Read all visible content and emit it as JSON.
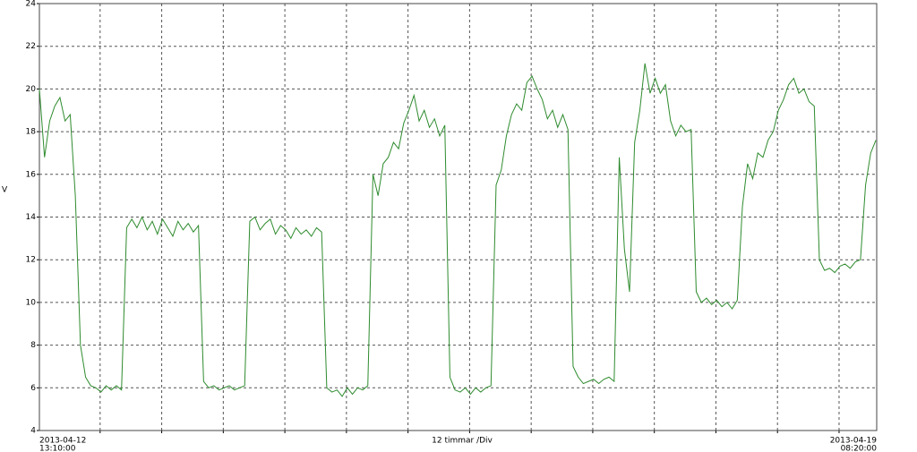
{
  "chart_data": {
    "type": "line",
    "ylabel": "V",
    "x_center_label": "12 timmar /Div",
    "x_start_label": {
      "date": "2013-04-12",
      "time": "13:10:00"
    },
    "x_end_label": {
      "date": "2013-04-19",
      "time": "08:20:00"
    },
    "xlim": [
      0,
      163.1667
    ],
    "xgrid": [
      11.8333,
      23.8333,
      35.8333,
      47.8333,
      59.8333,
      71.8333,
      83.8333,
      95.8333,
      107.8333,
      119.8333,
      131.8333,
      143.8333,
      155.8333
    ],
    "ylim": [
      4,
      24
    ],
    "yticks": [
      4,
      6,
      8,
      10,
      12,
      14,
      16,
      18,
      20,
      22,
      24
    ],
    "grid": true,
    "color": "#2e8b2e",
    "x": [
      0,
      1,
      2,
      3,
      4,
      5,
      6,
      7,
      8,
      9,
      10,
      11,
      12,
      13,
      14,
      15,
      16,
      17,
      18,
      19,
      20,
      21,
      22,
      23,
      24,
      25,
      26,
      27,
      28,
      29,
      30,
      31,
      32,
      33,
      34,
      35,
      36,
      37,
      38,
      39,
      40,
      41,
      42,
      43,
      44,
      45,
      46,
      47,
      48,
      49,
      50,
      51,
      52,
      53,
      54,
      55,
      56,
      57,
      58,
      59,
      60,
      61,
      62,
      63,
      64,
      65,
      66,
      67,
      68,
      69,
      70,
      71,
      72,
      73,
      74,
      75,
      76,
      77,
      78,
      79,
      80,
      81,
      82,
      83,
      84,
      85,
      86,
      87,
      88,
      89,
      90,
      91,
      92,
      93,
      94,
      95,
      96,
      97,
      98,
      99,
      100,
      101,
      102,
      103,
      104,
      105,
      106,
      107,
      108,
      109,
      110,
      111,
      112,
      113,
      114,
      115,
      116,
      117,
      118,
      119,
      120,
      121,
      122,
      123,
      124,
      125,
      126,
      127,
      128,
      129,
      130,
      131,
      132,
      133,
      134,
      135,
      136,
      137,
      138,
      139,
      140,
      141,
      142,
      143,
      144,
      145,
      146,
      147,
      148,
      149,
      150,
      151,
      152,
      153,
      154,
      155,
      156,
      157,
      158,
      159,
      160,
      161,
      162,
      163
    ],
    "series": [
      {
        "color": "#2e8b2e",
        "values": [
          20,
          16.8,
          18.5,
          19.2,
          19.6,
          18.5,
          18.8,
          15,
          8,
          6.5,
          6.1,
          6.0,
          5.8,
          6.1,
          5.9,
          6.1,
          5.9,
          13.5,
          13.9,
          13.5,
          14.0,
          13.4,
          13.8,
          13.2,
          13.9,
          13.5,
          13.1,
          13.8,
          13.4,
          13.7,
          13.3,
          13.6,
          6.3,
          6.0,
          6.1,
          5.9,
          6.0,
          6.1,
          5.9,
          6.0,
          6.1,
          13.8,
          14.0,
          13.4,
          13.7,
          13.9,
          13.2,
          13.6,
          13.4,
          13.0,
          13.5,
          13.2,
          13.4,
          13.1,
          13.5,
          13.3,
          6.0,
          5.8,
          5.9,
          5.6,
          6.0,
          5.7,
          6.0,
          5.9,
          6.1,
          16.0,
          15.0,
          16.5,
          16.8,
          17.5,
          17.2,
          18.4,
          19.0,
          19.7,
          18.5,
          19.0,
          18.2,
          18.6,
          17.8,
          18.3,
          6.5,
          5.9,
          5.8,
          6.0,
          5.7,
          6.0,
          5.8,
          6.0,
          6.1,
          15.5,
          16.2,
          17.8,
          18.8,
          19.3,
          19.0,
          20.3,
          20.6,
          20.0,
          19.5,
          18.6,
          19.0,
          18.2,
          18.8,
          18.1,
          7.0,
          6.5,
          6.2,
          6.3,
          6.4,
          6.2,
          6.4,
          6.5,
          6.3,
          16.8,
          12.5,
          10.5,
          17.5,
          19.0,
          21.2,
          19.8,
          20.5,
          19.8,
          20.2,
          18.5,
          17.8,
          18.3,
          18.0,
          18.1,
          10.5,
          10.0,
          10.2,
          9.9,
          10.1,
          9.8,
          10.0,
          9.7,
          10.1,
          14.5,
          16.5,
          15.8,
          17.0,
          16.8,
          17.6,
          18.0,
          19.0,
          19.5,
          20.2,
          20.5,
          19.8,
          20.0,
          19.4,
          19.2,
          12.0,
          11.5,
          11.6,
          11.4,
          11.7,
          11.8,
          11.6,
          11.9,
          12.0,
          15.5,
          17.0,
          17.6
        ]
      }
    ]
  }
}
